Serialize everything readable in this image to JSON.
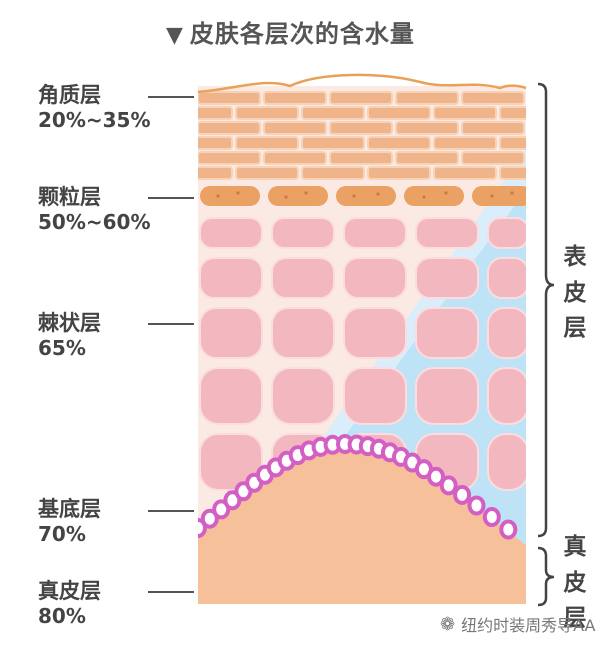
{
  "title": "皮肤各层次的含水量",
  "title_marker": "▼",
  "layers": [
    {
      "name": "角质层",
      "water": "20%~35%"
    },
    {
      "name": "颗粒层",
      "water": "50%~60%"
    },
    {
      "name": "棘状层",
      "water": "65%"
    },
    {
      "name": "基底层",
      "water": "70%"
    },
    {
      "name": "真皮层",
      "water": "80%"
    }
  ],
  "side_labels": {
    "epidermis": [
      "表",
      "皮",
      "层"
    ],
    "dermis": [
      "真",
      "皮",
      "层"
    ]
  },
  "watermark": "纽约时装周秀导AA",
  "colors": {
    "corneum": "#f0b48a",
    "granular": "#eba064",
    "spinous": "#f3b8bf",
    "basal_ring": "#d45fc4",
    "dermis": "#f5c09a",
    "water": "#bfe3f6"
  }
}
